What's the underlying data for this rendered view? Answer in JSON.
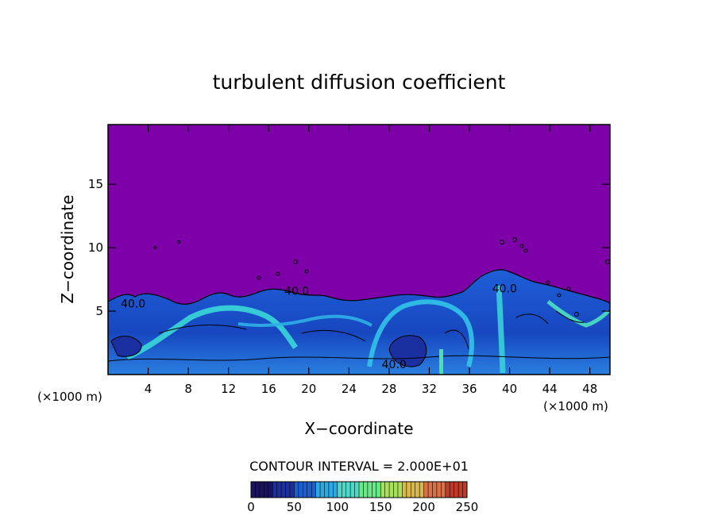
{
  "chart_data": {
    "type": "heatmap",
    "title": "turbulent diffusion coefficient",
    "xlabel": "X−coordinate",
    "ylabel": "Z−coordinate",
    "x_unit_left": "(×1000 m)",
    "x_unit_right": "(×1000 m)",
    "xlim": [
      0,
      50
    ],
    "ylim": [
      0,
      19.7
    ],
    "xticks": [
      4,
      8,
      12,
      16,
      20,
      24,
      28,
      32,
      36,
      40,
      44,
      48
    ],
    "yticks": [
      5,
      10,
      15
    ],
    "contour_interval_text": "CONTOUR INTERVAL = 2.000E+01",
    "contour_labels": [
      {
        "text": "40.0",
        "x": 2.5,
        "z": 5.6
      },
      {
        "text": "40.0",
        "x": 18.8,
        "z": 6.6
      },
      {
        "text": "40.0",
        "x": 39.5,
        "z": 6.8
      },
      {
        "text": "40.0",
        "x": 28.5,
        "z": 0.8
      }
    ],
    "colorbar": {
      "min": 0,
      "max": 250,
      "ticks": [
        0,
        50,
        100,
        150,
        200,
        250
      ],
      "colors": [
        "#1a1460",
        "#1c2f9c",
        "#1e5fd0",
        "#2ea8e0",
        "#4fd8c8",
        "#6be88a",
        "#a8e05a",
        "#d8b84a",
        "#d8704a",
        "#c03a2a"
      ]
    },
    "background_color": "#7e00a8"
  }
}
